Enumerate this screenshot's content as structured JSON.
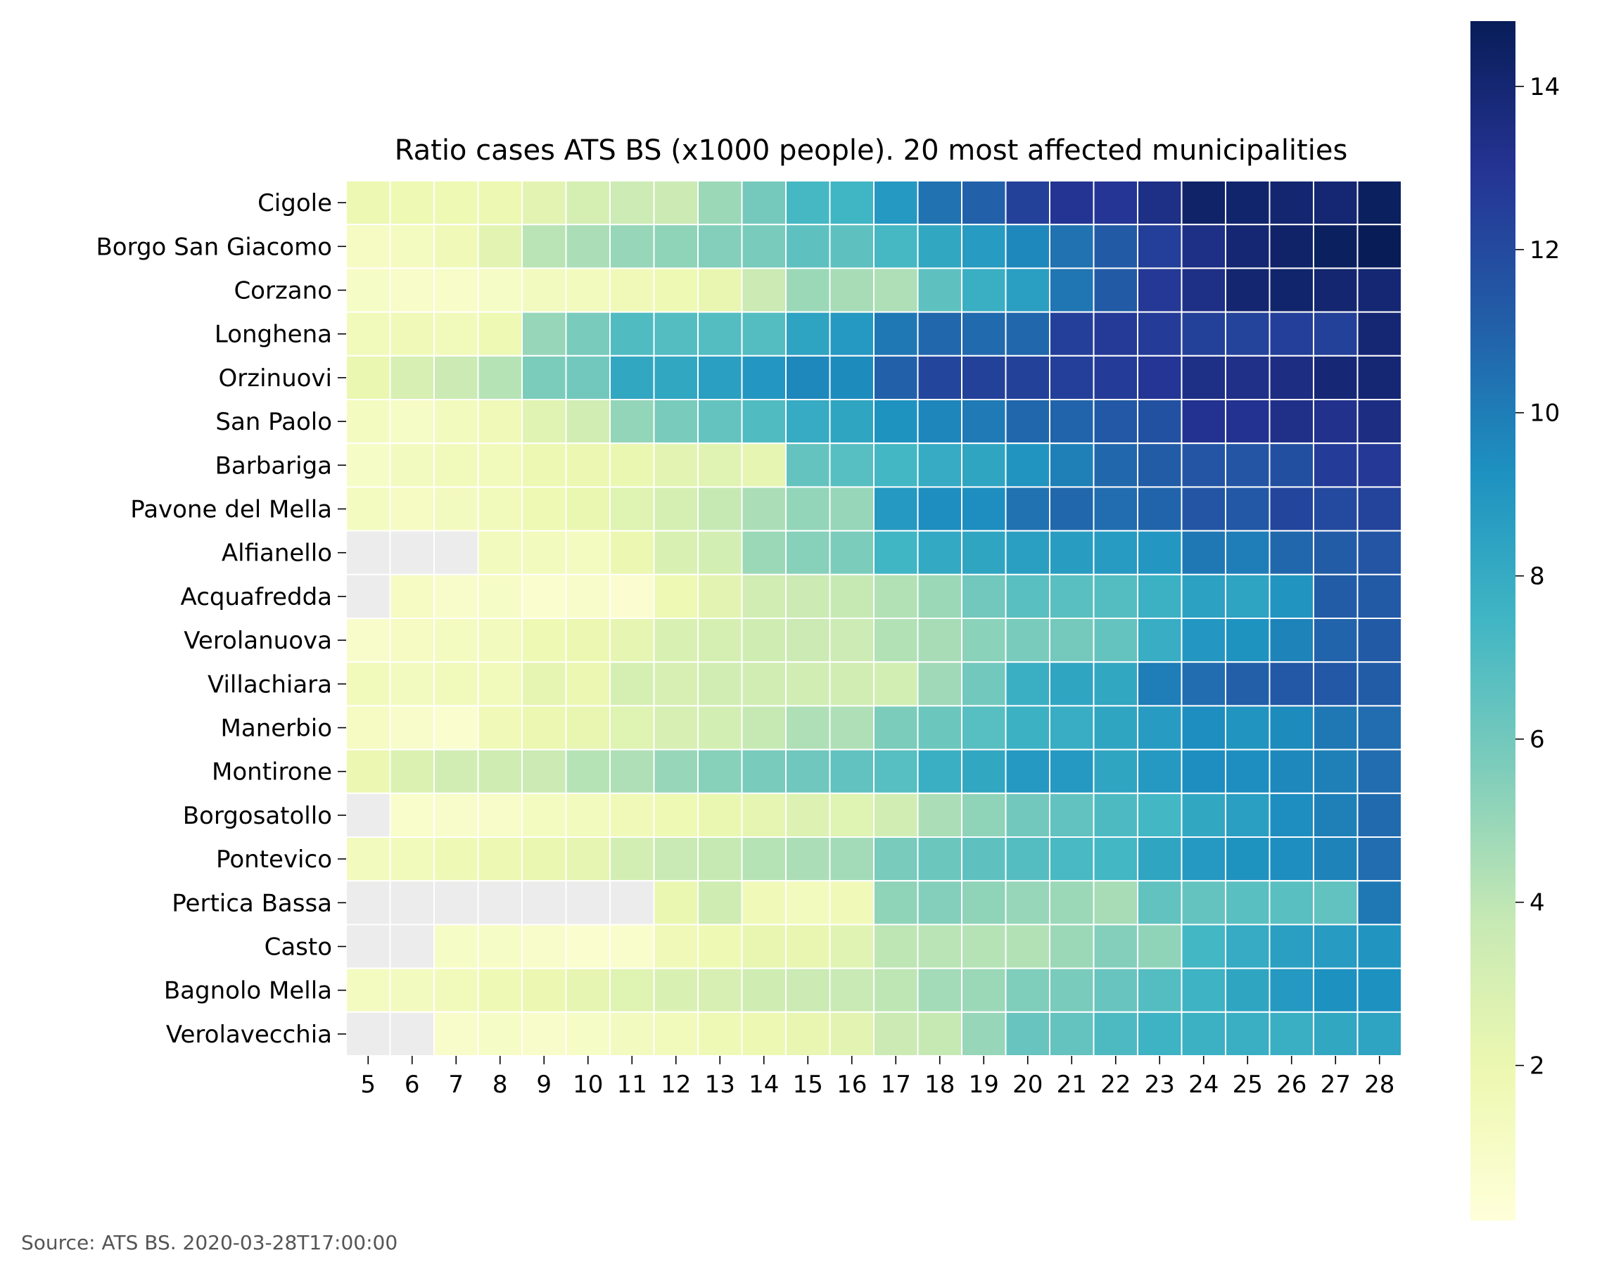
{
  "chart_data": {
    "type": "heatmap",
    "title": "Ratio cases ATS BS (x1000 people). 20 most affected municipalities",
    "source": "Source: ATS BS. 2020-03-28T17:00:00",
    "xlabel": "",
    "ylabel": "",
    "x": [
      5,
      6,
      7,
      8,
      9,
      10,
      11,
      12,
      13,
      14,
      15,
      16,
      17,
      18,
      19,
      20,
      21,
      22,
      23,
      24,
      25,
      26,
      27,
      28
    ],
    "y": [
      "Cigole",
      "Borgo San Giacomo",
      "Corzano",
      "Longhena",
      "Orzinuovi",
      "San Paolo",
      "Barbariga",
      "Pavone del Mella",
      "Alfianello",
      "Acquafredda",
      "Verolanuova",
      "Villachiara",
      "Manerbio",
      "Montirone",
      "Borgosatollo",
      "Pontevico",
      "Pertica Bassa",
      "Casto",
      "Bagnolo Mella",
      "Verolavecchia"
    ],
    "values": [
      [
        1.9,
        1.8,
        1.8,
        1.9,
        2.4,
        3.1,
        3.5,
        3.6,
        4.9,
        5.9,
        7.3,
        7.5,
        8.9,
        10.4,
        11.0,
        12.4,
        13.0,
        12.9,
        13.4,
        14.3,
        14.2,
        14.1,
        14.0,
        14.6
      ],
      [
        1.1,
        1.2,
        1.6,
        2.4,
        4.1,
        4.5,
        5.0,
        5.2,
        5.5,
        5.8,
        6.6,
        6.6,
        7.3,
        8.2,
        8.8,
        9.6,
        10.4,
        11.3,
        12.5,
        13.4,
        14.0,
        14.3,
        14.6,
        14.8
      ],
      [
        1.0,
        0.9,
        0.9,
        1.0,
        1.3,
        1.4,
        1.6,
        1.8,
        2.2,
        3.6,
        4.9,
        4.6,
        4.4,
        6.6,
        7.8,
        8.6,
        10.3,
        11.3,
        12.8,
        13.4,
        14.1,
        14.2,
        14.1,
        14.0
      ],
      [
        1.5,
        1.6,
        1.5,
        1.8,
        5.0,
        5.8,
        7.0,
        6.9,
        6.9,
        6.9,
        8.4,
        8.9,
        10.2,
        10.8,
        10.7,
        10.8,
        12.5,
        12.7,
        12.6,
        12.4,
        12.3,
        12.5,
        12.4,
        14.0
      ],
      [
        2.1,
        3.0,
        3.6,
        4.2,
        5.7,
        6.0,
        8.2,
        8.2,
        8.6,
        9.0,
        9.6,
        9.5,
        11.0,
        12.2,
        12.4,
        12.4,
        12.5,
        12.6,
        12.9,
        13.4,
        13.3,
        13.5,
        13.9,
        14.0
      ],
      [
        1.2,
        1.0,
        1.4,
        1.6,
        2.5,
        3.3,
        5.1,
        5.8,
        6.4,
        7.0,
        8.0,
        8.3,
        9.2,
        9.7,
        10.1,
        10.8,
        10.9,
        11.4,
        11.7,
        13.1,
        13.1,
        13.3,
        13.2,
        13.5
      ],
      [
        1.0,
        1.3,
        1.5,
        1.5,
        1.9,
        2.0,
        2.1,
        2.4,
        2.5,
        2.3,
        6.4,
        6.8,
        7.4,
        8.0,
        8.3,
        9.1,
        9.9,
        10.8,
        11.2,
        11.5,
        11.5,
        11.8,
        12.6,
        12.8
      ],
      [
        1.2,
        1.1,
        1.3,
        1.5,
        1.8,
        2.1,
        2.6,
        3.1,
        3.8,
        4.5,
        5.1,
        5.0,
        8.9,
        9.4,
        9.4,
        10.4,
        10.8,
        10.6,
        10.9,
        11.5,
        11.4,
        12.2,
        12.0,
        12.3
      ],
      [
        null,
        null,
        null,
        1.4,
        1.4,
        1.2,
        2.0,
        2.9,
        3.2,
        4.9,
        5.4,
        5.7,
        7.5,
        8.1,
        8.3,
        8.6,
        8.7,
        8.8,
        9.0,
        10.2,
        10.0,
        10.8,
        11.2,
        11.5
      ],
      [
        null,
        1.1,
        0.8,
        1.0,
        0.6,
        0.8,
        0.5,
        1.8,
        2.4,
        3.3,
        3.6,
        3.8,
        4.3,
        4.9,
        6.0,
        6.7,
        6.7,
        6.9,
        7.7,
        8.5,
        8.4,
        9.1,
        11.2,
        11.3
      ],
      [
        0.8,
        1.1,
        1.2,
        1.4,
        1.8,
        2.0,
        2.3,
        2.9,
        3.1,
        3.4,
        3.6,
        3.5,
        4.3,
        4.6,
        5.3,
        5.8,
        5.9,
        6.4,
        7.9,
        9.0,
        9.2,
        9.8,
        10.9,
        11.3
      ],
      [
        1.5,
        1.3,
        1.5,
        1.5,
        2.3,
        2.0,
        3.1,
        3.0,
        3.3,
        3.3,
        3.3,
        3.3,
        3.2,
        4.8,
        6.0,
        7.8,
        8.3,
        8.2,
        10.0,
        10.6,
        11.1,
        11.4,
        11.4,
        11.2
      ],
      [
        1.1,
        0.8,
        0.6,
        1.6,
        2.0,
        2.2,
        2.6,
        3.0,
        3.2,
        3.8,
        4.4,
        4.4,
        5.7,
        6.2,
        6.8,
        7.7,
        7.9,
        8.3,
        8.8,
        9.4,
        9.1,
        9.5,
        10.2,
        10.6
      ],
      [
        2.0,
        2.8,
        3.3,
        3.4,
        3.6,
        4.2,
        4.4,
        5.0,
        5.4,
        5.8,
        6.1,
        6.5,
        6.8,
        7.8,
        8.2,
        8.9,
        8.9,
        8.3,
        8.9,
        9.4,
        9.4,
        9.6,
        9.9,
        10.6
      ],
      [
        null,
        0.7,
        0.8,
        0.9,
        1.2,
        1.4,
        1.6,
        1.8,
        2.1,
        2.3,
        2.7,
        2.6,
        3.3,
        4.5,
        5.2,
        6.0,
        6.5,
        7.1,
        7.4,
        8.2,
        8.6,
        9.4,
        9.9,
        10.7
      ],
      [
        1.4,
        1.5,
        1.7,
        1.9,
        2.1,
        2.3,
        3.2,
        3.7,
        3.8,
        4.2,
        4.5,
        4.7,
        5.8,
        6.2,
        6.6,
        6.9,
        7.2,
        7.4,
        8.3,
        8.9,
        9.2,
        9.4,
        9.8,
        10.6
      ],
      [
        null,
        null,
        null,
        null,
        null,
        null,
        null,
        2.1,
        3.4,
        1.6,
        1.4,
        1.6,
        5.2,
        5.5,
        5.2,
        5.0,
        4.9,
        4.6,
        6.5,
        6.4,
        6.7,
        6.7,
        6.5,
        10.2
      ],
      [
        null,
        null,
        1.0,
        1.0,
        0.8,
        0.6,
        0.7,
        1.6,
        1.8,
        2.2,
        2.2,
        2.5,
        4.0,
        4.1,
        4.2,
        4.3,
        4.9,
        5.5,
        5.2,
        7.4,
        8.0,
        8.6,
        8.8,
        9.1
      ],
      [
        1.2,
        1.3,
        1.5,
        1.7,
        2.0,
        2.3,
        2.6,
        2.9,
        3.0,
        3.4,
        3.6,
        3.7,
        4.0,
        4.7,
        4.9,
        5.6,
        5.8,
        6.3,
        6.9,
        7.6,
        8.3,
        8.9,
        9.3,
        9.3
      ],
      [
        null,
        null,
        0.8,
        1.0,
        0.8,
        1.0,
        1.3,
        1.5,
        1.7,
        1.9,
        2.2,
        2.4,
        3.6,
        3.8,
        5.0,
        6.3,
        6.4,
        7.1,
        7.6,
        7.7,
        7.8,
        7.8,
        8.2,
        8.4
      ]
    ],
    "missing_color": "#ececec",
    "colormap": "YlGnBu",
    "colorbar": {
      "range": [
        0.1,
        14.8
      ],
      "ticks": [
        2,
        4,
        6,
        8,
        10,
        12,
        14
      ]
    },
    "grid": false,
    "legend": "colorbar-right"
  }
}
